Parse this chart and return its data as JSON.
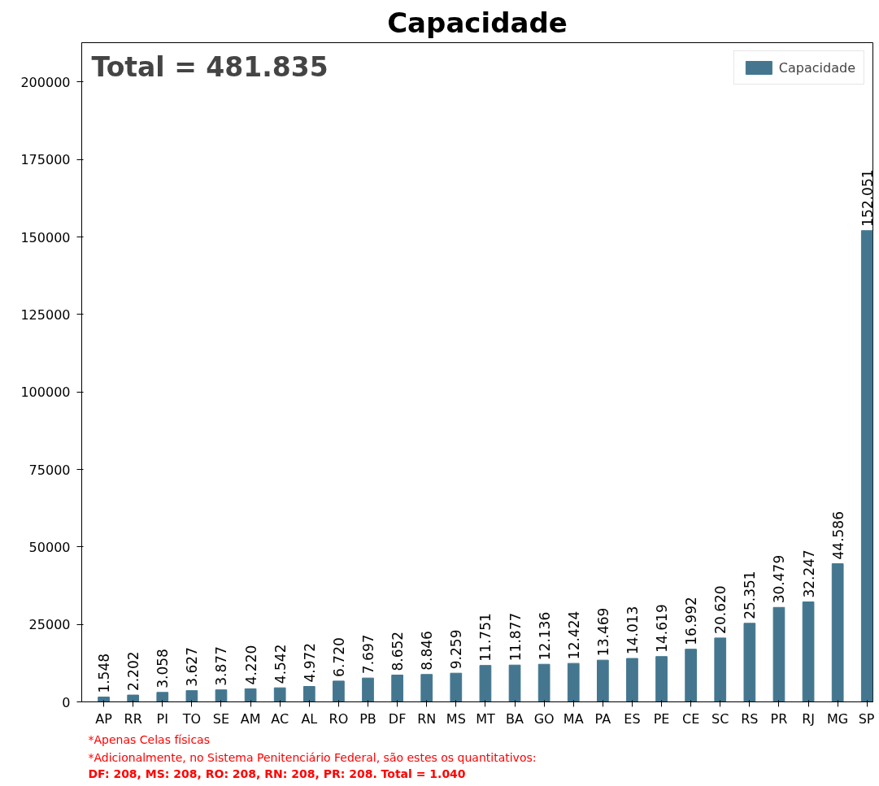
{
  "chart_data": {
    "type": "bar",
    "title": "Capacidade",
    "categories": [
      "AP",
      "RR",
      "PI",
      "TO",
      "SE",
      "AM",
      "AC",
      "AL",
      "RO",
      "PB",
      "DF",
      "RN",
      "MS",
      "MT",
      "BA",
      "GO",
      "MA",
      "PA",
      "ES",
      "PE",
      "CE",
      "SC",
      "RS",
      "PR",
      "RJ",
      "MG",
      "SP"
    ],
    "series": [
      {
        "name": "Capacidade",
        "color": "#44778f",
        "values": [
          1548,
          2202,
          3058,
          3627,
          3877,
          4220,
          4542,
          4972,
          6720,
          7697,
          8652,
          8846,
          9259,
          11751,
          11877,
          12136,
          12424,
          13469,
          14013,
          14619,
          16992,
          20620,
          25351,
          30479,
          32247,
          44586,
          152051
        ],
        "value_labels": [
          "1.548",
          "2.202",
          "3.058",
          "3.627",
          "3.877",
          "4.220",
          "4.542",
          "4.972",
          "6.720",
          "7.697",
          "8.652",
          "8.846",
          "9.259",
          "11.751",
          "11.877",
          "12.136",
          "12.424",
          "13.469",
          "14.013",
          "14.619",
          "16.992",
          "20.620",
          "25.351",
          "30.479",
          "32.247",
          "44.586",
          "152.051"
        ]
      }
    ],
    "ylim": [
      0,
      212700
    ],
    "yticks": [
      0,
      25000,
      50000,
      75000,
      100000,
      125000,
      150000,
      175000,
      200000
    ],
    "grid": false,
    "legend": "top right",
    "annotations": [
      "Total = 481.835",
      "*Apenas Celas físicas",
      "*Adicionalmente, no Sistema Penitenciário Federal, são estes os quantitativos:",
      "DF: 208, MS: 208, RO: 208, RN: 208, PR: 208. Total = 1.040"
    ]
  }
}
